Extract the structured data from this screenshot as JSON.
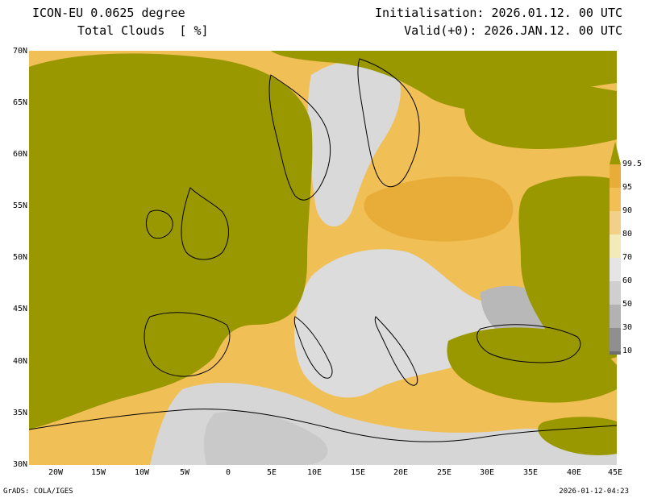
{
  "header": {
    "model": "ICON-EU 0.0625 degree",
    "variable": "Total Clouds  [ %]",
    "initialisation": "Initialisation: 2026.01.12. 00 UTC",
    "valid": "Valid(+0): 2026.JAN.12. 00 UTC"
  },
  "axes": {
    "lat_labels": [
      "70N",
      "65N",
      "60N",
      "55N",
      "50N",
      "45N",
      "40N",
      "35N",
      "30N"
    ],
    "lon_labels": [
      "20W",
      "15W",
      "10W",
      "5W",
      "0",
      "5E",
      "10E",
      "15E",
      "20E",
      "25E",
      "30E",
      "35E",
      "40E",
      "45E"
    ],
    "lat_range": [
      30,
      70
    ],
    "lon_range": [
      -23,
      45
    ]
  },
  "colorbar": {
    "labels": [
      "99.5",
      "95",
      "90",
      "80",
      "70",
      "60",
      "50",
      "30",
      "10"
    ],
    "colors": [
      "#9a9800",
      "#e7ad38",
      "#f0bf55",
      "#f3d088",
      "#f2eab8",
      "#e5e5e5",
      "#cfcfcf",
      "#b2b2b2",
      "#8f8f8f",
      "#6e6e6e"
    ]
  },
  "footer": {
    "software": "GrADS: COLA/IGES",
    "timestamp": "2026-01-12-04:23"
  }
}
